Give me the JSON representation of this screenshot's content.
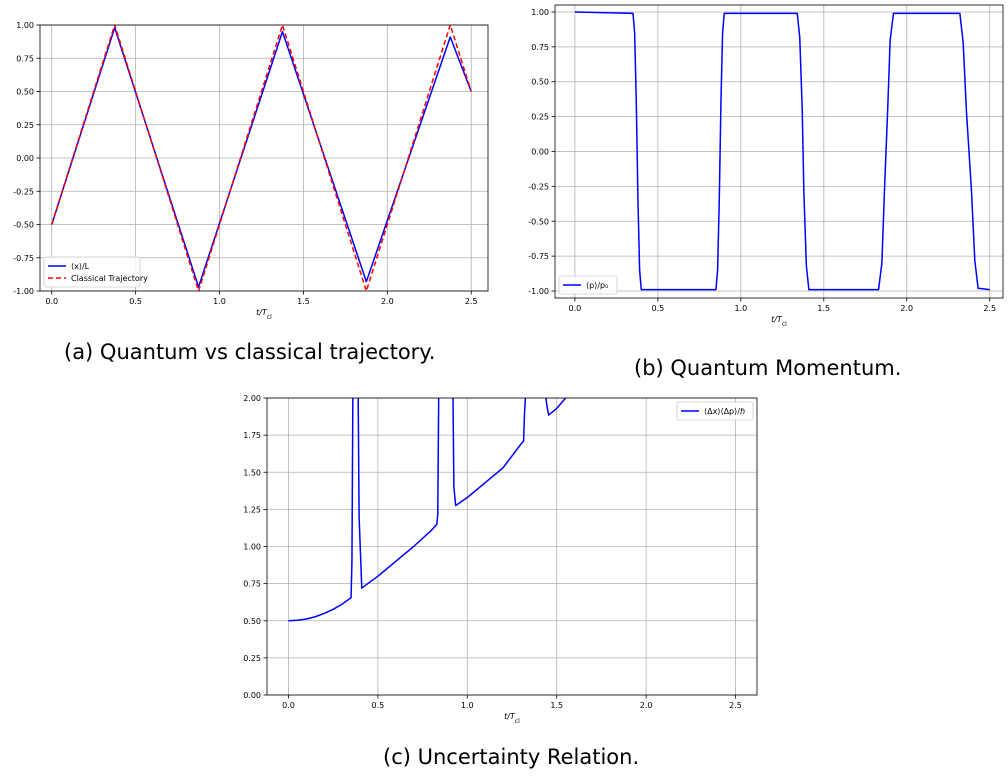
{
  "captions": {
    "a": "(a) Quantum vs classical trajectory.",
    "b": "(b) Quantum Momentum.",
    "c": "(c) Uncertainty Relation."
  },
  "chart_data": [
    {
      "type": "line",
      "xlabel": "t/T_cl",
      "ylabel": "",
      "xlim": [
        -0.07,
        2.6
      ],
      "ylim": [
        -1.0,
        1.0
      ],
      "xticks": [
        "0.0",
        "0.5",
        "1.0",
        "1.5",
        "2.0",
        "2.5"
      ],
      "yticks": [
        "-1.00",
        "-0.75",
        "-0.50",
        "-0.25",
        "0.00",
        "0.25",
        "0.50",
        "0.75",
        "1.00"
      ],
      "grid": true,
      "legend": "bottom-left",
      "series": [
        {
          "name": "⟨x⟩/L",
          "color": "#0000ff",
          "style": "solid",
          "x": [
            0.0,
            0.375,
            0.875,
            1.375,
            1.875,
            2.375,
            2.5
          ],
          "y": [
            -0.5,
            0.98,
            -0.97,
            0.95,
            -0.93,
            0.91,
            0.5
          ]
        },
        {
          "name": "Classical Trajectory",
          "color": "#ff0000",
          "style": "dashed",
          "x": [
            0.0,
            0.375,
            0.875,
            1.375,
            1.875,
            2.375,
            2.5
          ],
          "y": [
            -0.5,
            1.0,
            -1.0,
            1.0,
            -1.0,
            1.0,
            0.5
          ]
        }
      ]
    },
    {
      "type": "line",
      "xlabel": "t/T_cl",
      "ylabel": "",
      "xlim": [
        -0.12,
        2.58
      ],
      "ylim": [
        -1.05,
        1.05
      ],
      "xticks": [
        "0.0",
        "0.5",
        "1.0",
        "1.5",
        "2.0",
        "2.5"
      ],
      "yticks": [
        "-1.00",
        "-0.75",
        "-0.50",
        "-0.25",
        "0.00",
        "0.25",
        "0.50",
        "0.75",
        "1.00"
      ],
      "grid": true,
      "legend": "bottom-left",
      "series": [
        {
          "name": "⟨p⟩/p₀",
          "color": "#0000ff",
          "style": "solid",
          "x": [
            0.0,
            0.35,
            0.36,
            0.37,
            0.375,
            0.38,
            0.39,
            0.4,
            0.85,
            0.86,
            0.87,
            0.875,
            0.88,
            0.89,
            0.9,
            1.34,
            1.355,
            1.37,
            1.375,
            1.38,
            1.395,
            1.41,
            1.83,
            1.85,
            1.865,
            1.875,
            1.885,
            1.9,
            1.92,
            2.32,
            2.34,
            2.36,
            2.375,
            2.39,
            2.41,
            2.43,
            2.5
          ],
          "y": [
            1.0,
            0.99,
            0.85,
            0.35,
            0.0,
            -0.35,
            -0.85,
            -0.99,
            -0.99,
            -0.85,
            -0.35,
            0.0,
            0.35,
            0.85,
            0.99,
            0.99,
            0.82,
            0.3,
            0.0,
            -0.3,
            -0.82,
            -0.99,
            -0.99,
            -0.8,
            -0.3,
            0.0,
            0.3,
            0.8,
            0.99,
            0.99,
            0.78,
            0.28,
            0.0,
            -0.28,
            -0.78,
            -0.98,
            -0.99
          ]
        }
      ]
    },
    {
      "type": "line",
      "xlabel": "t/T_cl",
      "ylabel": "",
      "xlim": [
        -0.12,
        2.62
      ],
      "ylim": [
        0.0,
        2.0
      ],
      "xticks": [
        "0.0",
        "0.5",
        "1.0",
        "1.5",
        "2.0",
        "2.5"
      ],
      "yticks": [
        "0.00",
        "0.25",
        "0.50",
        "0.75",
        "1.00",
        "1.25",
        "1.50",
        "1.75",
        "2.00"
      ],
      "grid": true,
      "legend": "top-right",
      "series": [
        {
          "name": "⟨Δx⟩⟨Δp⟩/ℏ",
          "color": "#0000ff",
          "style": "solid",
          "segments": [
            {
              "x": [
                0.0,
                0.05,
                0.1,
                0.15,
                0.2,
                0.25,
                0.3,
                0.35,
                0.355,
                0.36
              ],
              "y": [
                0.5,
                0.503,
                0.512,
                0.527,
                0.549,
                0.577,
                0.612,
                0.655,
                0.9,
                2.0
              ]
            },
            {
              "x": [
                0.39,
                0.395,
                0.41,
                0.5,
                0.6,
                0.7,
                0.8,
                0.83,
                0.835,
                0.84
              ],
              "y": [
                2.0,
                1.2,
                0.72,
                0.8,
                0.9,
                1.0,
                1.11,
                1.15,
                1.22,
                2.0
              ]
            },
            {
              "x": [
                0.92,
                0.925,
                0.935,
                1.0,
                1.1,
                1.2,
                1.3,
                1.315,
                1.32,
                1.325
              ],
              "y": [
                2.0,
                1.4,
                1.275,
                1.33,
                1.43,
                1.53,
                1.69,
                1.71,
                1.9,
                2.0
              ]
            },
            {
              "x": [
                1.44,
                1.445,
                1.455,
                1.5,
                1.55
              ],
              "y": [
                2.0,
                1.95,
                1.885,
                1.93,
                2.0
              ]
            }
          ]
        }
      ]
    }
  ]
}
